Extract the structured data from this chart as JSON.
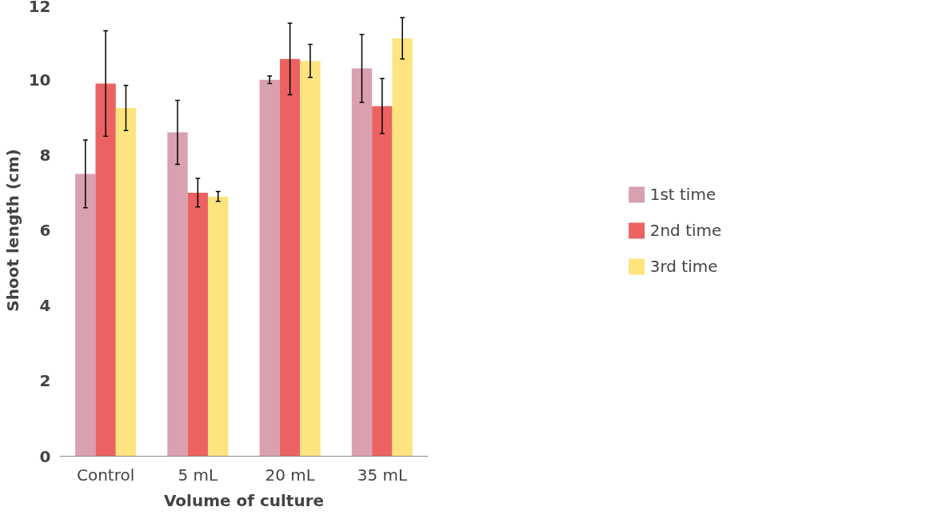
{
  "chart_data": {
    "type": "bar",
    "xlabel": "Volume of culture",
    "ylabel": "Shoot length (cm)",
    "categories": [
      "Control",
      "5 mL",
      "20 mL",
      "35 mL"
    ],
    "series": [
      {
        "name": "1st time",
        "color": "#d9a0b0",
        "values": [
          7.5,
          8.6,
          10.0,
          10.3
        ],
        "errors": [
          0.9,
          0.85,
          0.1,
          0.9
        ]
      },
      {
        "name": "2nd time",
        "color": "#ec6262",
        "values": [
          9.9,
          7.0,
          10.55,
          9.3
        ],
        "errors": [
          1.4,
          0.38,
          0.95,
          0.73
        ]
      },
      {
        "name": "3rd time",
        "color": "#fde47f",
        "values": [
          9.25,
          6.9,
          10.5,
          11.1
        ],
        "errors": [
          0.6,
          0.13,
          0.44,
          0.55
        ]
      }
    ],
    "ylim": [
      0,
      12
    ],
    "yticks": [
      0,
      2,
      4,
      6,
      8,
      10,
      12
    ],
    "grid": false,
    "legend": "right"
  }
}
